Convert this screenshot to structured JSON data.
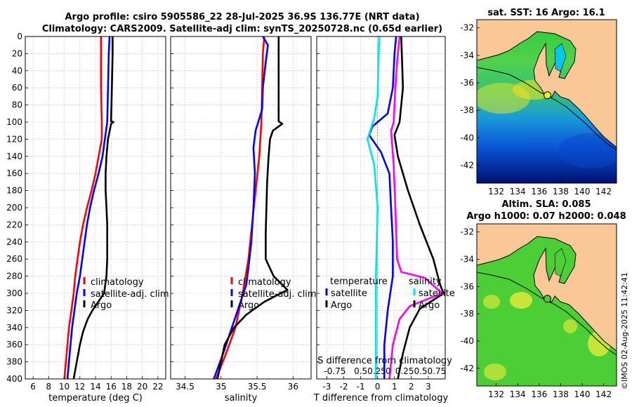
{
  "header": {
    "title_line1": "Argo profile: csiro 5905586_22 28-Jul-2025 36.9S 136.77E (NRT data)",
    "title_line2": "Climatology: CARS2009. Satellite-adj clim: synTS_20250728.nc (0.65d earlier)"
  },
  "colors": {
    "climatology": "#ff0000",
    "satellite": "#0000ff",
    "argo": "#000000",
    "sal_sat": "#00e5ee",
    "sal_diff": "#ff00ff",
    "land": "#f9c896"
  },
  "chart_data": [
    {
      "type": "line",
      "name": "temperature",
      "xlabel": "temperature (deg C)",
      "ylabel": "",
      "xlim": [
        5,
        23
      ],
      "ylim": [
        400,
        0
      ],
      "xticks": [
        6,
        8,
        10,
        12,
        14,
        16,
        18,
        20,
        22
      ],
      "yticks": [
        0,
        20,
        40,
        60,
        80,
        100,
        120,
        140,
        160,
        180,
        200,
        220,
        240,
        260,
        280,
        300,
        320,
        340,
        360,
        380,
        400
      ],
      "legend": [
        "climatology",
        "satellite-adj. clim",
        "Argo"
      ],
      "series": [
        {
          "name": "climatology",
          "color": "#ff0000",
          "points": [
            [
              14.7,
              0
            ],
            [
              14.7,
              20
            ],
            [
              14.7,
              60
            ],
            [
              14.8,
              100
            ],
            [
              14.8,
              120
            ],
            [
              14.4,
              140
            ],
            [
              14.0,
              160
            ],
            [
              13.5,
              180
            ],
            [
              12.9,
              200
            ],
            [
              12.4,
              220
            ],
            [
              12.0,
              240
            ],
            [
              11.7,
              260
            ],
            [
              11.4,
              280
            ],
            [
              11.2,
              300
            ],
            [
              10.9,
              320
            ],
            [
              10.6,
              340
            ],
            [
              10.4,
              360
            ],
            [
              10.2,
              380
            ],
            [
              10.0,
              400
            ]
          ]
        },
        {
          "name": "satellite-adj. clim",
          "color": "#0000ff",
          "points": [
            [
              15.8,
              0
            ],
            [
              15.7,
              20
            ],
            [
              15.6,
              60
            ],
            [
              15.5,
              100
            ],
            [
              15.2,
              120
            ],
            [
              14.9,
              140
            ],
            [
              14.4,
              160
            ],
            [
              13.8,
              180
            ],
            [
              13.3,
              200
            ],
            [
              12.9,
              220
            ],
            [
              12.6,
              240
            ],
            [
              12.3,
              260
            ],
            [
              12.0,
              280
            ],
            [
              11.6,
              300
            ],
            [
              11.3,
              320
            ],
            [
              11.0,
              340
            ],
            [
              10.8,
              360
            ],
            [
              10.6,
              380
            ],
            [
              10.4,
              400
            ]
          ]
        },
        {
          "name": "Argo",
          "color": "#000000",
          "points": [
            [
              16.2,
              0
            ],
            [
              16.2,
              20
            ],
            [
              16.1,
              60
            ],
            [
              16.0,
              99
            ],
            [
              16.3,
              100
            ],
            [
              16.0,
              102
            ],
            [
              15.6,
              120
            ],
            [
              15.4,
              140
            ],
            [
              15.3,
              160
            ],
            [
              15.3,
              180
            ],
            [
              15.4,
              200
            ],
            [
              15.5,
              220
            ],
            [
              15.5,
              240
            ],
            [
              15.5,
              260
            ],
            [
              15.4,
              280
            ],
            [
              15.1,
              300
            ],
            [
              13.6,
              320
            ],
            [
              13.0,
              330
            ],
            [
              12.4,
              345
            ],
            [
              12.0,
              360
            ],
            [
              11.6,
              380
            ],
            [
              11.2,
              400
            ]
          ]
        }
      ]
    },
    {
      "type": "line",
      "name": "salinity",
      "xlabel": "salinity",
      "ylabel": "",
      "xlim": [
        34.3,
        36.25
      ],
      "ylim": [
        400,
        0
      ],
      "xticks": [
        34.5,
        35,
        35.5,
        36
      ],
      "legend": [
        "climatology",
        "satellite-adj. clim",
        "Argo"
      ],
      "series": [
        {
          "name": "climatology",
          "color": "#ff0000",
          "points": [
            [
              35.6,
              0
            ],
            [
              35.58,
              20
            ],
            [
              35.57,
              60
            ],
            [
              35.56,
              100
            ],
            [
              35.53,
              140
            ],
            [
              35.48,
              180
            ],
            [
              35.43,
              220
            ],
            [
              35.38,
              260
            ],
            [
              35.3,
              300
            ],
            [
              35.2,
              340
            ],
            [
              35.07,
              370
            ],
            [
              34.93,
              400
            ]
          ]
        },
        {
          "name": "satellite-adj. clim",
          "color": "#0000ff",
          "points": [
            [
              35.58,
              0
            ],
            [
              35.65,
              10
            ],
            [
              35.62,
              30
            ],
            [
              35.58,
              60
            ],
            [
              35.57,
              85
            ],
            [
              35.48,
              110
            ],
            [
              35.45,
              130
            ],
            [
              35.47,
              160
            ],
            [
              35.45,
              200
            ],
            [
              35.42,
              240
            ],
            [
              35.38,
              270
            ],
            [
              35.35,
              290
            ],
            [
              35.27,
              310
            ],
            [
              35.15,
              340
            ],
            [
              35.03,
              370
            ],
            [
              34.9,
              400
            ]
          ]
        },
        {
          "name": "Argo",
          "color": "#000000",
          "points": [
            [
              35.8,
              0
            ],
            [
              35.8,
              60
            ],
            [
              35.8,
              99
            ],
            [
              35.85,
              102
            ],
            [
              35.72,
              110
            ],
            [
              35.68,
              120
            ],
            [
              35.66,
              140
            ],
            [
              35.64,
              170
            ],
            [
              35.63,
              200
            ],
            [
              35.62,
              230
            ],
            [
              35.62,
              260
            ],
            [
              35.73,
              280
            ],
            [
              35.92,
              296
            ],
            [
              35.6,
              310
            ],
            [
              35.35,
              325
            ],
            [
              35.18,
              340
            ],
            [
              35.05,
              360
            ],
            [
              35.0,
              380
            ],
            [
              34.95,
              400
            ]
          ]
        }
      ]
    },
    {
      "type": "line",
      "name": "difference",
      "xlabel": "T difference from climatology",
      "top_label": "S difference from climatology",
      "xlim": [
        -3.6,
        4.0
      ],
      "ylim": [
        400,
        0
      ],
      "xticks": [
        -3,
        -2,
        -1,
        0,
        1,
        2,
        3
      ],
      "sticks": [
        "-0.75",
        "0.50.25",
        "0",
        "0.250.50.75"
      ],
      "legend_temperature": "temperature",
      "legend_salinity": "salinity",
      "legend_satellite": "satellite",
      "legend_argo": "Argo",
      "series": [
        {
          "name": "T satellite",
          "color": "#0000ff",
          "points": [
            [
              1.1,
              0
            ],
            [
              1.0,
              20
            ],
            [
              0.9,
              60
            ],
            [
              0.6,
              90
            ],
            [
              -0.3,
              105
            ],
            [
              -0.5,
              115
            ],
            [
              0.2,
              135
            ],
            [
              0.7,
              160
            ],
            [
              0.8,
              200
            ],
            [
              0.9,
              240
            ],
            [
              0.9,
              280
            ],
            [
              0.6,
              320
            ],
            [
              0.4,
              360
            ],
            [
              0.4,
              400
            ]
          ]
        },
        {
          "name": "T Argo",
          "color": "#000000",
          "points": [
            [
              1.4,
              0
            ],
            [
              1.5,
              60
            ],
            [
              1.3,
              100
            ],
            [
              1.0,
              115
            ],
            [
              1.2,
              140
            ],
            [
              1.8,
              180
            ],
            [
              2.5,
              220
            ],
            [
              3.3,
              260
            ],
            [
              3.7,
              290
            ],
            [
              3.9,
              300
            ],
            [
              2.5,
              318
            ],
            [
              1.9,
              340
            ],
            [
              1.5,
              370
            ],
            [
              1.2,
              400
            ]
          ]
        },
        {
          "name": "S satellite",
          "color": "#00e5ee",
          "points": [
            [
              0.1,
              0
            ],
            [
              0.05,
              30
            ],
            [
              0.0,
              70
            ],
            [
              -0.2,
              95
            ],
            [
              -0.6,
              120
            ],
            [
              -0.2,
              150
            ],
            [
              0.0,
              200
            ],
            [
              -0.1,
              280
            ],
            [
              -0.1,
              340
            ],
            [
              -0.1,
              400
            ]
          ]
        },
        {
          "name": "S Argo",
          "color": "#ff00ff",
          "points": [
            [
              1.3,
              0
            ],
            [
              1.15,
              30
            ],
            [
              1.05,
              60
            ],
            [
              0.95,
              100
            ],
            [
              0.8,
              110
            ],
            [
              0.95,
              150
            ],
            [
              1.05,
              200
            ],
            [
              1.15,
              260
            ],
            [
              1.4,
              275
            ],
            [
              2.8,
              282
            ],
            [
              3.8,
              300
            ],
            [
              1.9,
              315
            ],
            [
              1.3,
              330
            ],
            [
              0.9,
              360
            ],
            [
              0.7,
              400
            ]
          ]
        }
      ]
    },
    {
      "type": "heatmap",
      "name": "sst_map",
      "title": "sat. SST: 16 Argo: 16.1",
      "xticks": [
        132,
        134,
        136,
        138,
        140,
        142
      ],
      "yticks": [
        -32,
        -34,
        -36,
        -38,
        -40,
        -42
      ],
      "xlim": [
        130.2,
        143.2
      ],
      "ylim": [
        -43.3,
        -31.4
      ],
      "marker": [
        136.77,
        -36.9
      ]
    },
    {
      "type": "heatmap",
      "name": "sla_map",
      "title_line1": "Altim. SLA: 0.085",
      "title_line2": "Argo h1000: 0.07 h2000: 0.048",
      "xticks": [
        132,
        134,
        136,
        138,
        140,
        142
      ],
      "yticks": [
        -32,
        -34,
        -36,
        -38,
        -40,
        -42
      ],
      "xlim": [
        130.2,
        143.2
      ],
      "ylim": [
        -43.3,
        -31.4
      ],
      "marker": [
        136.77,
        -36.9
      ]
    }
  ],
  "footer": {
    "credit": "©IMOS 02-Aug-2025 11:42:41"
  }
}
